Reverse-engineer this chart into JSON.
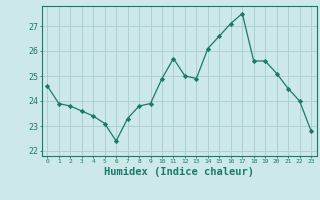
{
  "x": [
    0,
    1,
    2,
    3,
    4,
    5,
    6,
    7,
    8,
    9,
    10,
    11,
    12,
    13,
    14,
    15,
    16,
    17,
    18,
    19,
    20,
    21,
    22,
    23
  ],
  "y": [
    24.6,
    23.9,
    23.8,
    23.6,
    23.4,
    23.1,
    22.4,
    23.3,
    23.8,
    23.9,
    24.9,
    25.7,
    25.0,
    24.9,
    26.1,
    26.6,
    27.1,
    27.5,
    25.6,
    25.6,
    25.1,
    24.5,
    24.0,
    22.8
  ],
  "line_color": "#1a7a6a",
  "marker": "D",
  "marker_size": 2.2,
  "bg_color": "#cce8e8",
  "grid_color": "#aacccc",
  "axis_color": "#1a7a6a",
  "xlabel": "Humidex (Indice chaleur)",
  "xlabel_fontsize": 7.5,
  "ylabel_ticks": [
    22,
    23,
    24,
    25,
    26,
    27
  ],
  "xlim": [
    -0.5,
    23.5
  ],
  "ylim": [
    21.8,
    27.8
  ]
}
